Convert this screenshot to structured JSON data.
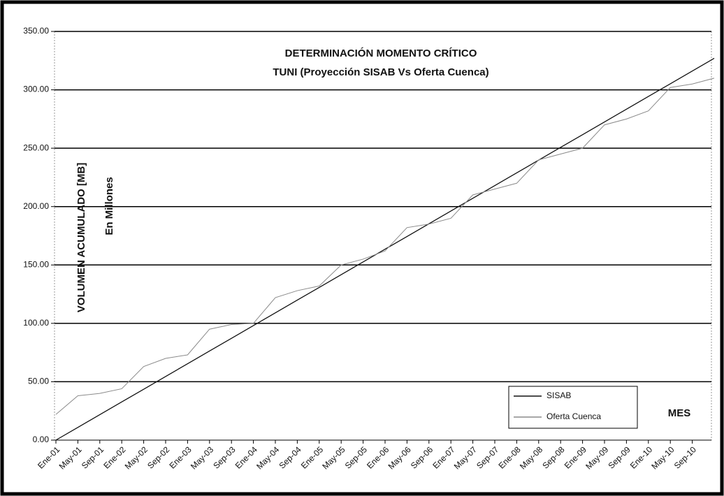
{
  "chart_data": {
    "type": "line",
    "title": "DETERMINACIÓN MOMENTO CRÍTICO",
    "subtitle": "TUNI (Proyección SISAB Vs Oferta Cuenca)",
    "y_label": "VOLUMEN ACUMULADO [MB]",
    "y_label_note": "En Millones",
    "x_label": "MES",
    "categories": [
      "Ene-01",
      "May-01",
      "Sep-01",
      "Ene-02",
      "May-02",
      "Sep-02",
      "Ene-03",
      "May-03",
      "Sep-03",
      "Ene-04",
      "May-04",
      "Sep-04",
      "Ene-05",
      "May-05",
      "Sep-05",
      "Ene-06",
      "May-06",
      "Sep-06",
      "Ene-07",
      "May-07",
      "Sep-07",
      "Ene-08",
      "May-08",
      "Sep-08",
      "Ene-09",
      "May-09",
      "Sep-09",
      "Ene-10",
      "May-10",
      "Sep-10",
      null
    ],
    "series": [
      {
        "name": "SISAB",
        "color": "#111111",
        "values": [
          0,
          10.9,
          21.8,
          32.7,
          43.6,
          54.5,
          65.4,
          76.3,
          87.2,
          98.1,
          109,
          119.9,
          130.8,
          141.7,
          152.6,
          163.5,
          174.4,
          185.3,
          196.2,
          207.1,
          218,
          228.9,
          239.8,
          250.7,
          261.6,
          272.5,
          283.4,
          294.3,
          305.2,
          316.1,
          327
        ]
      },
      {
        "name": "Oferta Cuenca",
        "color": "#8a8a8a",
        "values": [
          22,
          38,
          40,
          44,
          63,
          70,
          73,
          95,
          99,
          100,
          122,
          128,
          132,
          150,
          155,
          162,
          182,
          185,
          190,
          210,
          215,
          220,
          240,
          245,
          250,
          270,
          275,
          282,
          302,
          305,
          310
        ]
      }
    ],
    "ylim": [
      0,
      350
    ],
    "yticks": [
      {
        "value": 0,
        "label": "0.00"
      },
      {
        "value": 50,
        "label": "50.00"
      },
      {
        "value": 100,
        "label": "100.00"
      },
      {
        "value": 150,
        "label": "150.00"
      },
      {
        "value": 200,
        "label": "200.00"
      },
      {
        "value": 250,
        "label": "250.00"
      },
      {
        "value": 300,
        "label": "300.00"
      },
      {
        "value": 350,
        "label": "350.00"
      }
    ],
    "grid": true,
    "legend": "lower right"
  }
}
